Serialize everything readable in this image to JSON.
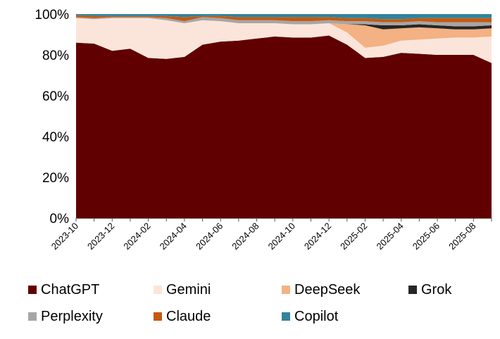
{
  "chart_data": {
    "type": "area",
    "stacked": true,
    "normalized": true,
    "title": "",
    "xlabel": "",
    "ylabel": "",
    "ylim": [
      0,
      100
    ],
    "yticks": [
      "0%",
      "20%",
      "40%",
      "60%",
      "80%",
      "100%"
    ],
    "x": [
      "2023-10",
      "2023-11",
      "2023-12",
      "2024-01",
      "2024-02",
      "2024-03",
      "2024-04",
      "2024-05",
      "2024-06",
      "2024-07",
      "2024-08",
      "2024-09",
      "2024-10",
      "2024-11",
      "2024-12",
      "2025-01",
      "2025-02",
      "2025-03",
      "2025-04",
      "2025-05",
      "2025-06",
      "2025-07",
      "2025-08",
      "2025-09"
    ],
    "xtick_labels": [
      "2023-10",
      "2023-12",
      "2024-02",
      "2024-04",
      "2024-06",
      "2024-08",
      "2024-10",
      "2024-12",
      "2025-02",
      "2025-04",
      "2025-06",
      "2025-08"
    ],
    "legend_position": "bottom",
    "series": [
      {
        "name": "ChatGPT",
        "color": "#600000",
        "values": [
          86,
          85.5,
          82,
          83,
          78.5,
          78,
          79,
          85,
          86.5,
          87,
          88,
          89,
          88.5,
          88.5,
          89.5,
          85,
          78.5,
          79,
          81,
          80.5,
          80,
          80,
          80,
          76
        ]
      },
      {
        "name": "Gemini",
        "color": "#FBE5DA",
        "values": [
          12,
          12,
          16,
          15,
          19.5,
          19,
          16.5,
          12,
          10,
          8.5,
          7.5,
          6.5,
          6.5,
          6.5,
          6,
          6,
          5,
          5.5,
          6,
          7,
          8,
          8.5,
          8.5,
          13
        ]
      },
      {
        "name": "DeepSeek",
        "color": "#F4B183",
        "values": [
          0,
          0,
          0,
          0,
          0,
          0,
          0,
          0,
          0,
          0,
          0,
          0,
          0,
          0,
          0,
          4,
          11,
          8,
          6,
          6,
          5,
          4,
          4,
          4
        ]
      },
      {
        "name": "Grok",
        "color": "#262626",
        "values": [
          0,
          0,
          0,
          0,
          0,
          0,
          0,
          0,
          0,
          0,
          0,
          0,
          0,
          0,
          0,
          0,
          0.5,
          2,
          1.5,
          1.5,
          1.5,
          1.5,
          1.5,
          1.5
        ]
      },
      {
        "name": "Perplexity",
        "color": "#A6A6A6",
        "values": [
          0.5,
          0.5,
          0.5,
          0.5,
          0.5,
          1,
          1,
          1.5,
          1.5,
          1.5,
          1.5,
          1.5,
          1.5,
          1.5,
          1.5,
          1.5,
          1.5,
          1.5,
          1.5,
          1.5,
          1.5,
          2,
          2,
          1.5
        ]
      },
      {
        "name": "Claude",
        "color": "#C55A11",
        "values": [
          1,
          1,
          0.5,
          0.5,
          0.5,
          1,
          2,
          0.5,
          1,
          1.5,
          1.5,
          1.5,
          2,
          2,
          1.5,
          1.5,
          1.5,
          1.5,
          1.5,
          1.5,
          2,
          2,
          2,
          2
        ]
      },
      {
        "name": "Copilot",
        "color": "#31849B",
        "values": [
          0.5,
          1,
          1,
          1,
          1,
          1,
          1.5,
          1,
          1,
          1.5,
          1.5,
          1.5,
          1.5,
          1.5,
          1.5,
          2,
          2,
          2.5,
          2.5,
          2,
          2,
          2,
          2,
          2
        ]
      }
    ]
  }
}
